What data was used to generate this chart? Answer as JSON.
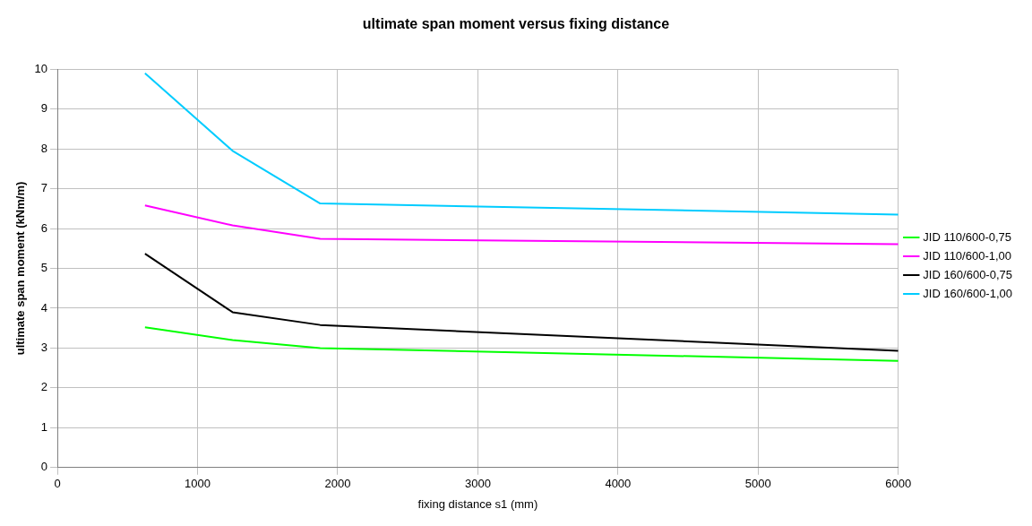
{
  "chart_data": {
    "type": "line",
    "title": "ultimate span moment versus fixing distance",
    "xlabel": "fixing distance s1 (mm)",
    "ylabel": "ultimate span moment (kNm/m)",
    "x": [
      625,
      1250,
      1875,
      6000
    ],
    "series": [
      {
        "name": "JID 110/600-0,75",
        "color": "#00ff00",
        "values": [
          3.52,
          3.2,
          3.0,
          2.68
        ]
      },
      {
        "name": "JID 110/600-1,00",
        "color": "#ff00ff",
        "values": [
          6.58,
          6.08,
          5.74,
          5.61
        ]
      },
      {
        "name": "JID 160/600-0,75",
        "color": "#000000",
        "values": [
          5.37,
          3.9,
          3.58,
          2.93
        ]
      },
      {
        "name": "JID 160/600-1,00",
        "color": "#00ccff",
        "values": [
          9.9,
          7.95,
          6.63,
          6.35
        ]
      }
    ],
    "xlim": [
      0,
      6000
    ],
    "xticks": [
      0,
      1000,
      2000,
      3000,
      4000,
      5000,
      6000
    ],
    "ylim": [
      0,
      10
    ],
    "yticks": [
      0,
      1,
      2,
      3,
      4,
      5,
      6,
      7,
      8,
      9,
      10
    ],
    "grid": true,
    "legend": "right",
    "marker": "none",
    "line_style": "solid"
  }
}
